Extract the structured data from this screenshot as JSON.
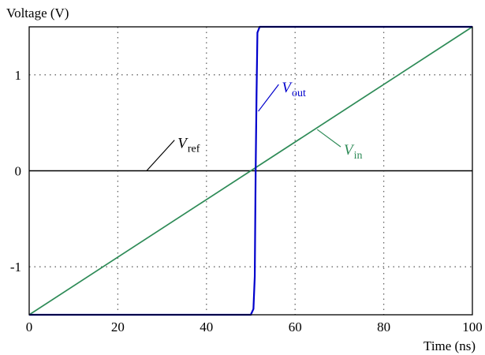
{
  "chart_data": {
    "type": "line",
    "title": "",
    "xlabel": "Time (ns)",
    "ylabel": "Voltage (V)",
    "xlim": [
      0,
      100
    ],
    "ylim": [
      -1.5,
      1.5
    ],
    "x_ticks": [
      0,
      20,
      40,
      60,
      80,
      100
    ],
    "x_tick_labels": [
      "0",
      "20",
      "40",
      "60",
      "80",
      "100"
    ],
    "y_ticks": [
      1,
      0,
      -1
    ],
    "y_tick_labels": [
      "1",
      "0",
      "-1"
    ],
    "grid": true,
    "series": [
      {
        "key": "vref",
        "color": "#000000",
        "x": [
          0,
          100
        ],
        "y": [
          0,
          0
        ]
      },
      {
        "key": "vin",
        "color": "#2e8b57",
        "x": [
          0,
          100
        ],
        "y": [
          -1.5,
          1.5
        ]
      },
      {
        "key": "vout",
        "color": "#0000cc",
        "x": [
          0,
          50,
          50.6,
          50.9,
          51.1,
          51.3,
          51.5,
          52,
          100
        ],
        "y": [
          -1.5,
          -1.5,
          -1.44,
          -1.1,
          0,
          0.8,
          1.44,
          1.5,
          1.5
        ]
      }
    ],
    "annotations": [
      {
        "key": "vref",
        "main": "V",
        "sub": "ref",
        "color": "#000000",
        "at": [
          26.5,
          0
        ],
        "label_at": [
          33.5,
          0.27
        ]
      },
      {
        "key": "vout",
        "main": "V",
        "sub": "out",
        "color": "#0000cc",
        "at": [
          51.7,
          0.62
        ],
        "label_at": [
          57,
          0.85
        ]
      },
      {
        "key": "vin",
        "main": "V",
        "sub": "in",
        "color": "#2e8b57",
        "at": [
          65,
          0.43
        ],
        "label_at": [
          71,
          0.2
        ]
      }
    ]
  }
}
